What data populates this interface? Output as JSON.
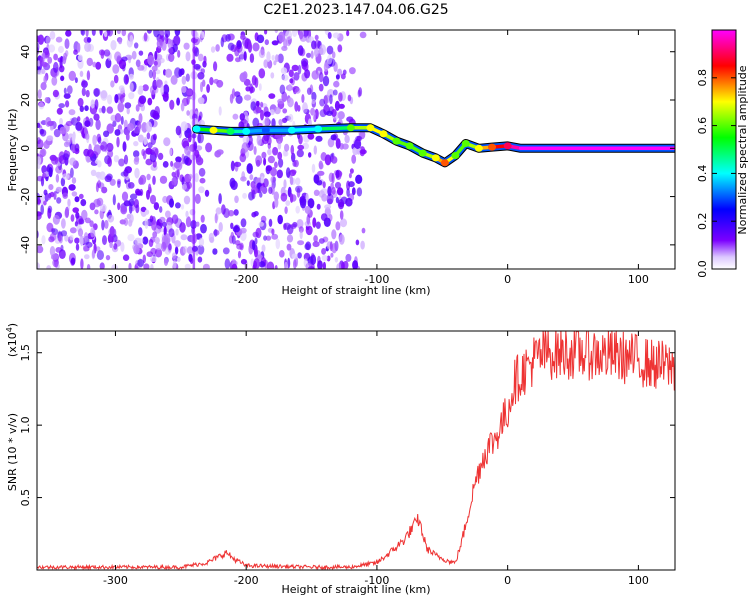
{
  "title": "C2E1.2023.147.04.06.G25",
  "chart_data": [
    {
      "type": "heatmap",
      "title": "C2E1.2023.147.04.06.G25",
      "xlabel": "Height of straight line (km)",
      "ylabel": "Frequency (Hz)",
      "xlim": [
        -360,
        128
      ],
      "ylim": [
        -50,
        49
      ],
      "x_ticks": [
        -300,
        -200,
        -100,
        0,
        100
      ],
      "y_ticks": [
        -40,
        -20,
        0,
        20,
        40
      ],
      "colorbar": {
        "label": "Normalized spectral amplitude",
        "range": [
          0,
          1
        ],
        "ticks": [
          0.0,
          0.2,
          0.4,
          0.6,
          0.8
        ],
        "colormap": [
          "#ffffff",
          "#7b00ff",
          "#0000ff",
          "#00ffff",
          "#00ff00",
          "#ffff00",
          "#ff0000",
          "#ff00ff"
        ]
      },
      "ridge": {
        "x": [
          -238,
          -225,
          -212,
          -200,
          -185,
          -165,
          -145,
          -120,
          -105,
          -95,
          -85,
          -75,
          -65,
          -55,
          -48,
          -40,
          -32,
          -22,
          -12,
          0,
          10,
          128
        ],
        "frequency": [
          8,
          7.5,
          7,
          7,
          7.5,
          7.5,
          8,
          8.5,
          8.5,
          6,
          3,
          1,
          -2,
          -4,
          -6,
          -3,
          2,
          0,
          0.5,
          1,
          0,
          0
        ],
        "amplitude": [
          0.4,
          0.7,
          0.5,
          0.4,
          0.3,
          0.4,
          0.4,
          0.6,
          0.7,
          0.7,
          0.6,
          0.6,
          0.6,
          0.7,
          0.8,
          0.6,
          0.6,
          0.7,
          0.8,
          0.9,
          1.0,
          1.0
        ]
      }
    },
    {
      "type": "line",
      "xlabel": "Height of straight line (km)",
      "ylabel": "SNR (10 * v/v)",
      "y_multiplier": "(x10",
      "y_multiplier_exp": "4",
      "y_multiplier_close": ")",
      "xlim": [
        -360,
        128
      ],
      "ylim": [
        0,
        1.65
      ],
      "x_ticks": [
        -300,
        -200,
        -100,
        0,
        100
      ],
      "y_ticks": [
        0.5,
        1.0,
        1.5
      ],
      "color": "#ee3333",
      "series": [
        {
          "x": [
            -360,
            -300,
            -250,
            -230,
            -215,
            -210,
            -200,
            -150,
            -120,
            -100,
            -90,
            -80,
            -72,
            -68,
            -62,
            -55,
            -45,
            -40,
            -35,
            -30,
            -25,
            -20,
            -15,
            -10,
            -5,
            0,
            5,
            10,
            20,
            30,
            40,
            60,
            80,
            100,
            110,
            128
          ],
          "y": [
            0.02,
            0.02,
            0.02,
            0.05,
            0.12,
            0.08,
            0.03,
            0.02,
            0.02,
            0.05,
            0.12,
            0.2,
            0.3,
            0.35,
            0.15,
            0.1,
            0.06,
            0.05,
            0.2,
            0.4,
            0.6,
            0.75,
            0.85,
            0.9,
            1.0,
            1.1,
            1.3,
            1.35,
            1.45,
            1.5,
            1.5,
            1.5,
            1.48,
            1.45,
            1.42,
            1.4
          ]
        }
      ]
    }
  ]
}
